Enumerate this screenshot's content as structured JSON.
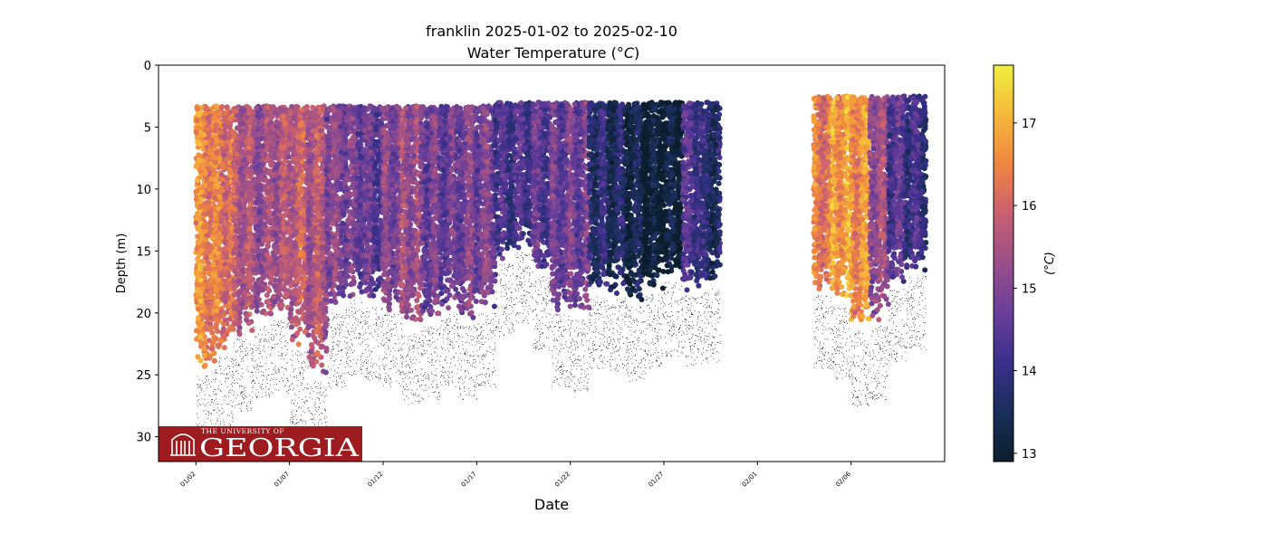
{
  "chart_data": {
    "type": "scatter",
    "title": "franklin 2025-01-02 to 2025-02-10",
    "subtitle": "Water Temperature (",
    "subtitle_unit": "°C",
    "subtitle_close": ")",
    "xlabel": "Date",
    "ylabel": "Depth (m)",
    "colorbar_label": "(°C)",
    "colormap": "thermal",
    "colormap_stops": [
      "#0b1e2e",
      "#1a2f5a",
      "#3a2f8c",
      "#6a3f9a",
      "#9a4f8a",
      "#c85f72",
      "#f0853f",
      "#f5b73a",
      "#eef03e"
    ],
    "y_inverted": true,
    "ylim": [
      32,
      0
    ],
    "xlim": [
      "2024-12-31",
      "2025-02-11"
    ],
    "clim": [
      12.9,
      17.7
    ],
    "yticks": [
      0,
      5,
      10,
      15,
      20,
      25,
      30
    ],
    "xticks": [
      "01/02",
      "01/07",
      "01/12",
      "01/17",
      "01/22",
      "01/27",
      "02/01",
      "02/06"
    ],
    "xtick_dates": [
      "2025-01-02",
      "2025-01-07",
      "2025-01-12",
      "2025-01-17",
      "2025-01-22",
      "2025-01-27",
      "2025-02-01",
      "2025-02-06"
    ],
    "cticks": [
      13,
      14,
      15,
      16,
      17
    ],
    "profile_columns": [
      {
        "date": "2025-01-02",
        "top": 3.3,
        "bottom": 25.0,
        "temp": 16.5
      },
      {
        "date": "2025-01-03",
        "top": 3.3,
        "bottom": 23.5,
        "temp": 16.2
      },
      {
        "date": "2025-01-04",
        "top": 3.3,
        "bottom": 22.0,
        "temp": 15.6
      },
      {
        "date": "2025-01-05",
        "top": 3.3,
        "bottom": 21.0,
        "temp": 15.3
      },
      {
        "date": "2025-01-06",
        "top": 3.3,
        "bottom": 20.5,
        "temp": 15.5
      },
      {
        "date": "2025-01-07",
        "top": 3.3,
        "bottom": 23.0,
        "temp": 15.8
      },
      {
        "date": "2025-01-08",
        "top": 3.3,
        "bottom": 25.5,
        "temp": 15.6
      },
      {
        "date": "2025-01-09",
        "top": 3.3,
        "bottom": 20.0,
        "temp": 15.0
      },
      {
        "date": "2025-01-10",
        "top": 3.3,
        "bottom": 19.0,
        "temp": 14.8
      },
      {
        "date": "2025-01-11",
        "top": 3.3,
        "bottom": 19.5,
        "temp": 14.6
      },
      {
        "date": "2025-01-12",
        "top": 3.3,
        "bottom": 20.0,
        "temp": 15.0
      },
      {
        "date": "2025-01-13",
        "top": 3.3,
        "bottom": 21.5,
        "temp": 15.3
      },
      {
        "date": "2025-01-14",
        "top": 3.3,
        "bottom": 21.0,
        "temp": 14.8
      },
      {
        "date": "2025-01-15",
        "top": 3.3,
        "bottom": 20.0,
        "temp": 14.7
      },
      {
        "date": "2025-01-16",
        "top": 3.3,
        "bottom": 21.0,
        "temp": 14.9
      },
      {
        "date": "2025-01-17",
        "top": 3.3,
        "bottom": 20.0,
        "temp": 14.9
      },
      {
        "date": "2025-01-18",
        "top": 3.0,
        "bottom": 16.0,
        "temp": 14.2
      },
      {
        "date": "2025-01-19",
        "top": 3.0,
        "bottom": 15.0,
        "temp": 14.3
      },
      {
        "date": "2025-01-20",
        "top": 3.0,
        "bottom": 17.0,
        "temp": 14.5
      },
      {
        "date": "2025-01-21",
        "top": 3.0,
        "bottom": 20.0,
        "temp": 14.7
      },
      {
        "date": "2025-01-22",
        "top": 3.0,
        "bottom": 20.5,
        "temp": 14.8
      },
      {
        "date": "2025-01-23",
        "top": 3.0,
        "bottom": 18.5,
        "temp": 13.8
      },
      {
        "date": "2025-01-24",
        "top": 3.0,
        "bottom": 18.8,
        "temp": 13.6
      },
      {
        "date": "2025-01-25",
        "top": 3.0,
        "bottom": 19.5,
        "temp": 13.3
      },
      {
        "date": "2025-01-26",
        "top": 3.0,
        "bottom": 18.5,
        "temp": 13.0
      },
      {
        "date": "2025-01-27",
        "top": 3.0,
        "bottom": 17.5,
        "temp": 13.1
      },
      {
        "date": "2025-01-28",
        "top": 3.0,
        "bottom": 18.5,
        "temp": 14.3
      },
      {
        "date": "2025-01-29",
        "top": 3.0,
        "bottom": 18.0,
        "temp": 13.7
      },
      {
        "date": "2025-02-04",
        "top": 2.5,
        "bottom": 18.5,
        "temp": 16.3
      },
      {
        "date": "2025-02-05",
        "top": 2.5,
        "bottom": 19.5,
        "temp": 16.8
      },
      {
        "date": "2025-02-06",
        "top": 2.5,
        "bottom": 21.5,
        "temp": 16.6
      },
      {
        "date": "2025-02-07",
        "top": 2.5,
        "bottom": 21.0,
        "temp": 15.3
      },
      {
        "date": "2025-02-08",
        "top": 2.5,
        "bottom": 18.0,
        "temp": 14.4
      },
      {
        "date": "2025-02-09",
        "top": 2.5,
        "bottom": 17.0,
        "temp": 14.1
      }
    ]
  },
  "logo": {
    "small_text": "THE UNIVERSITY OF",
    "main_text": "GEORGIA",
    "bg_color": "#9e1b1f"
  }
}
